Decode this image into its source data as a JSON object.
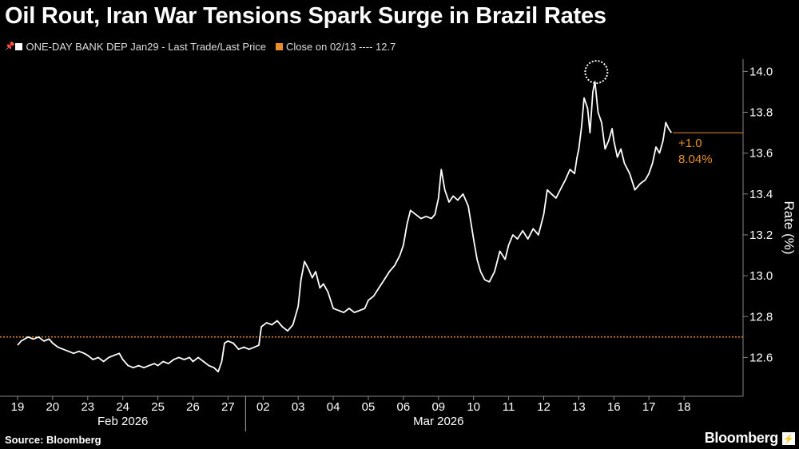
{
  "title": "Oil Rout, Iran War Tensions Spark Surge in Brazil Rates",
  "legend": {
    "series_label": "ONE-DAY BANK DEP  Jan29 - Last Trade/Last Price",
    "series_color": "#ffffff",
    "reference_label": "Close on 02/13 ---- 12.7",
    "reference_color": "#e8902a"
  },
  "source": "Source: Bloomberg",
  "brand": "Bloomberg",
  "brand_mark": "⚡",
  "chart_data": {
    "type": "line",
    "ylabel": "Rate (%)",
    "ylim": [
      12.41,
      14.06
    ],
    "yticks": [
      "12.6",
      "12.8",
      "13.0",
      "13.2",
      "13.4",
      "13.6",
      "13.8",
      "14.0"
    ],
    "grid": false,
    "y_axis_side": "right",
    "reference_line": 12.7,
    "x_day_labels": [
      "19",
      "20",
      "23",
      "24",
      "25",
      "26",
      "27",
      "02",
      "03",
      "04",
      "05",
      "06",
      "09",
      "10",
      "11",
      "12",
      "13",
      "16",
      "17",
      "18"
    ],
    "x_month_labels": [
      {
        "label": "Feb 2026",
        "at_day": "24"
      },
      {
        "label": "Mar 2026",
        "at_day": "09"
      }
    ],
    "month_divider_after": "27",
    "annotation": {
      "change": "+1.0",
      "pct": "8.04%",
      "last_value": 13.7
    },
    "high_marker": {
      "day": "13",
      "value": 13.95
    },
    "series": [
      {
        "name": "ONE-DAY BANK DEP  Jan29",
        "color": "#ffffff",
        "points": [
          [
            0.0,
            12.66
          ],
          [
            0.1,
            12.68
          ],
          [
            0.2,
            12.69
          ],
          [
            0.3,
            12.7
          ],
          [
            0.45,
            12.69
          ],
          [
            0.6,
            12.7
          ],
          [
            0.75,
            12.68
          ],
          [
            0.9,
            12.69
          ],
          [
            1.0,
            12.67
          ],
          [
            1.15,
            12.65
          ],
          [
            1.3,
            12.64
          ],
          [
            1.45,
            12.63
          ],
          [
            1.6,
            12.62
          ],
          [
            1.75,
            12.63
          ],
          [
            1.9,
            12.62
          ],
          [
            2.0,
            12.61
          ],
          [
            2.15,
            12.59
          ],
          [
            2.3,
            12.6
          ],
          [
            2.45,
            12.58
          ],
          [
            2.6,
            12.6
          ],
          [
            2.75,
            12.61
          ],
          [
            2.9,
            12.62
          ],
          [
            3.0,
            12.59
          ],
          [
            3.15,
            12.56
          ],
          [
            3.3,
            12.55
          ],
          [
            3.45,
            12.56
          ],
          [
            3.6,
            12.55
          ],
          [
            3.75,
            12.56
          ],
          [
            3.9,
            12.57
          ],
          [
            4.0,
            12.56
          ],
          [
            4.15,
            12.58
          ],
          [
            4.3,
            12.57
          ],
          [
            4.45,
            12.59
          ],
          [
            4.6,
            12.6
          ],
          [
            4.75,
            12.59
          ],
          [
            4.9,
            12.6
          ],
          [
            5.0,
            12.58
          ],
          [
            5.15,
            12.6
          ],
          [
            5.3,
            12.58
          ],
          [
            5.45,
            12.56
          ],
          [
            5.6,
            12.55
          ],
          [
            5.72,
            12.53
          ],
          [
            5.82,
            12.58
          ],
          [
            5.9,
            12.67
          ],
          [
            6.0,
            12.68
          ],
          [
            6.15,
            12.67
          ],
          [
            6.3,
            12.64
          ],
          [
            6.45,
            12.65
          ],
          [
            6.6,
            12.64
          ],
          [
            6.75,
            12.65
          ],
          [
            6.88,
            12.66
          ],
          [
            6.95,
            12.75
          ],
          [
            7.1,
            12.77
          ],
          [
            7.25,
            12.76
          ],
          [
            7.4,
            12.78
          ],
          [
            7.55,
            12.75
          ],
          [
            7.7,
            12.73
          ],
          [
            7.85,
            12.76
          ],
          [
            8.0,
            12.85
          ],
          [
            8.08,
            12.98
          ],
          [
            8.18,
            13.07
          ],
          [
            8.3,
            13.03
          ],
          [
            8.4,
            12.99
          ],
          [
            8.5,
            13.02
          ],
          [
            8.62,
            12.94
          ],
          [
            8.72,
            12.96
          ],
          [
            8.85,
            12.92
          ],
          [
            9.0,
            12.84
          ],
          [
            9.15,
            12.83
          ],
          [
            9.3,
            12.82
          ],
          [
            9.45,
            12.84
          ],
          [
            9.6,
            12.82
          ],
          [
            9.75,
            12.83
          ],
          [
            9.9,
            12.84
          ],
          [
            10.0,
            12.88
          ],
          [
            10.15,
            12.9
          ],
          [
            10.3,
            12.94
          ],
          [
            10.45,
            12.98
          ],
          [
            10.6,
            13.02
          ],
          [
            10.75,
            13.05
          ],
          [
            10.9,
            13.1
          ],
          [
            11.0,
            13.15
          ],
          [
            11.1,
            13.25
          ],
          [
            11.2,
            13.32
          ],
          [
            11.35,
            13.3
          ],
          [
            11.5,
            13.28
          ],
          [
            11.65,
            13.29
          ],
          [
            11.8,
            13.28
          ],
          [
            11.9,
            13.3
          ],
          [
            12.0,
            13.38
          ],
          [
            12.08,
            13.52
          ],
          [
            12.18,
            13.42
          ],
          [
            12.3,
            13.36
          ],
          [
            12.42,
            13.39
          ],
          [
            12.55,
            13.37
          ],
          [
            12.7,
            13.4
          ],
          [
            12.85,
            13.34
          ],
          [
            13.0,
            13.18
          ],
          [
            13.1,
            13.08
          ],
          [
            13.2,
            13.02
          ],
          [
            13.32,
            12.98
          ],
          [
            13.45,
            12.97
          ],
          [
            13.6,
            13.02
          ],
          [
            13.75,
            13.12
          ],
          [
            13.9,
            13.08
          ],
          [
            14.0,
            13.15
          ],
          [
            14.12,
            13.2
          ],
          [
            14.25,
            13.18
          ],
          [
            14.4,
            13.22
          ],
          [
            14.55,
            13.18
          ],
          [
            14.7,
            13.23
          ],
          [
            14.85,
            13.2
          ],
          [
            15.0,
            13.3
          ],
          [
            15.1,
            13.42
          ],
          [
            15.22,
            13.4
          ],
          [
            15.35,
            13.38
          ],
          [
            15.5,
            13.43
          ],
          [
            15.62,
            13.47
          ],
          [
            15.75,
            13.52
          ],
          [
            15.88,
            13.5
          ],
          [
            15.95,
            13.58
          ],
          [
            16.0,
            13.62
          ],
          [
            16.08,
            13.73
          ],
          [
            16.15,
            13.87
          ],
          [
            16.25,
            13.82
          ],
          [
            16.32,
            13.7
          ],
          [
            16.4,
            13.9
          ],
          [
            16.46,
            13.95
          ],
          [
            16.55,
            13.8
          ],
          [
            16.65,
            13.75
          ],
          [
            16.75,
            13.62
          ],
          [
            16.85,
            13.66
          ],
          [
            16.95,
            13.72
          ],
          [
            17.0,
            13.66
          ],
          [
            17.1,
            13.58
          ],
          [
            17.2,
            13.62
          ],
          [
            17.3,
            13.55
          ],
          [
            17.45,
            13.5
          ],
          [
            17.6,
            13.42
          ],
          [
            17.75,
            13.45
          ],
          [
            17.9,
            13.47
          ],
          [
            18.0,
            13.5
          ],
          [
            18.1,
            13.55
          ],
          [
            18.2,
            13.63
          ],
          [
            18.3,
            13.6
          ],
          [
            18.4,
            13.66
          ],
          [
            18.48,
            13.75
          ],
          [
            18.56,
            13.72
          ],
          [
            18.64,
            13.7
          ]
        ]
      }
    ],
    "reference_series": {
      "name": "Close on 02/13",
      "value": 12.7
    }
  }
}
